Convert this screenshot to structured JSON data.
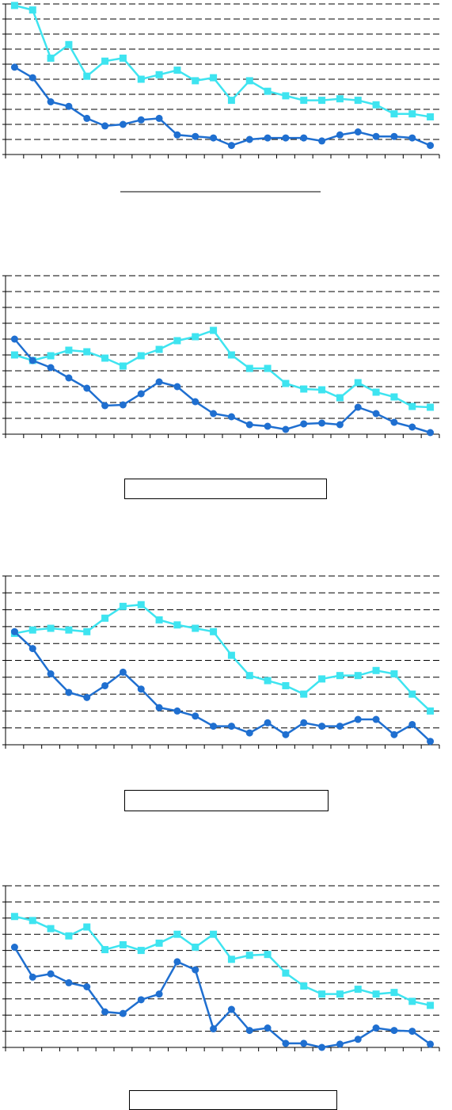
{
  "chart_data": [
    {
      "type": "line",
      "categories": [
        null,
        null,
        null,
        null,
        null,
        null,
        null,
        null,
        null,
        null,
        null,
        null,
        null,
        null,
        null,
        null,
        null,
        null,
        null,
        null,
        null,
        null,
        null,
        null
      ],
      "ylim": [
        0,
        10
      ],
      "yticks": [
        0,
        1,
        2,
        3,
        4,
        5,
        6,
        7,
        8,
        9,
        10
      ],
      "grid": true,
      "series": [
        {
          "color": "#3ee4f0",
          "marker": "square",
          "values": [
            9.9,
            9.6,
            6.4,
            7.3,
            5.2,
            6.2,
            6.4,
            5.0,
            5.3,
            5.6,
            4.9,
            5.1,
            3.6,
            4.9,
            4.2,
            3.9,
            3.6,
            3.6,
            3.7,
            3.6,
            3.3,
            2.7,
            2.7,
            2.5
          ]
        },
        {
          "color": "#1f6fd0",
          "marker": "circle",
          "values": [
            5.8,
            5.1,
            3.5,
            3.2,
            2.4,
            1.9,
            2.0,
            2.3,
            2.4,
            1.3,
            1.2,
            1.1,
            0.6,
            1.0,
            1.1,
            1.1,
            1.1,
            0.9,
            1.3,
            1.5,
            1.2,
            1.2,
            1.1,
            0.6
          ]
        }
      ]
    },
    {
      "type": "line",
      "categories": [
        null,
        null,
        null,
        null,
        null,
        null,
        null,
        null,
        null,
        null,
        null,
        null,
        null,
        null,
        null,
        null,
        null,
        null,
        null,
        null,
        null,
        null,
        null,
        null
      ],
      "ylim": [
        0,
        10
      ],
      "yticks": [
        0,
        1,
        2,
        3,
        4,
        5,
        6,
        7,
        8,
        9,
        10
      ],
      "grid": true,
      "series": [
        {
          "color": "#3ee4f0",
          "marker": "square",
          "values": [
            5.0,
            4.65,
            4.95,
            5.3,
            5.2,
            4.8,
            4.3,
            4.95,
            5.35,
            5.9,
            6.15,
            6.55,
            5.0,
            4.15,
            4.15,
            3.2,
            2.85,
            2.8,
            2.3,
            3.25,
            2.65,
            2.35,
            1.75,
            1.7
          ]
        },
        {
          "color": "#1f6fd0",
          "marker": "circle",
          "values": [
            6.0,
            4.65,
            4.2,
            3.55,
            2.9,
            1.8,
            1.85,
            2.55,
            3.3,
            3.0,
            2.05,
            1.3,
            1.1,
            0.6,
            0.5,
            0.3,
            0.65,
            0.7,
            0.6,
            1.7,
            1.3,
            0.75,
            0.45,
            0.1
          ]
        }
      ]
    },
    {
      "type": "line",
      "categories": [
        null,
        null,
        null,
        null,
        null,
        null,
        null,
        null,
        null,
        null,
        null,
        null,
        null,
        null,
        null,
        null,
        null,
        null,
        null,
        null,
        null,
        null,
        null,
        null
      ],
      "ylim": [
        0,
        10
      ],
      "yticks": [
        0,
        1,
        2,
        3,
        4,
        5,
        6,
        7,
        8,
        9,
        10
      ],
      "grid": true,
      "series": [
        {
          "color": "#3ee4f0",
          "marker": "square",
          "values": [
            6.6,
            6.8,
            6.9,
            6.8,
            6.7,
            7.5,
            8.2,
            8.3,
            7.4,
            7.1,
            6.9,
            6.7,
            5.3,
            4.1,
            3.8,
            3.5,
            3.0,
            3.9,
            4.1,
            4.1,
            4.4,
            4.2,
            3.0,
            2.0
          ]
        },
        {
          "color": "#1f6fd0",
          "marker": "circle",
          "values": [
            6.7,
            5.7,
            4.2,
            3.1,
            2.8,
            3.5,
            4.3,
            3.3,
            2.2,
            2.0,
            1.7,
            1.1,
            1.1,
            0.7,
            1.3,
            0.6,
            1.3,
            1.1,
            1.1,
            1.5,
            1.5,
            0.6,
            1.2,
            0.2
          ]
        }
      ]
    },
    {
      "type": "line",
      "categories": [
        null,
        null,
        null,
        null,
        null,
        null,
        null,
        null,
        null,
        null,
        null,
        null,
        null,
        null,
        null,
        null,
        null,
        null,
        null,
        null,
        null,
        null,
        null,
        null
      ],
      "ylim": [
        0,
        10
      ],
      "yticks": [
        0,
        1,
        2,
        3,
        4,
        5,
        6,
        7,
        8,
        9,
        10
      ],
      "grid": true,
      "series": [
        {
          "color": "#3ee4f0",
          "marker": "square",
          "values": [
            8.1,
            7.85,
            7.35,
            6.9,
            7.45,
            6.05,
            6.35,
            6.0,
            6.45,
            7.0,
            6.2,
            7.0,
            5.45,
            5.7,
            5.75,
            4.6,
            3.8,
            3.3,
            3.3,
            3.6,
            3.3,
            3.4,
            2.85,
            2.6
          ]
        },
        {
          "color": "#1f6fd0",
          "marker": "circle",
          "values": [
            6.2,
            4.35,
            4.55,
            4.0,
            3.75,
            2.2,
            2.1,
            2.95,
            3.3,
            5.3,
            4.8,
            1.15,
            2.35,
            1.05,
            1.2,
            0.25,
            0.25,
            0,
            0.2,
            0.5,
            1.2,
            1.05,
            1.0,
            0.2
          ]
        }
      ]
    }
  ]
}
